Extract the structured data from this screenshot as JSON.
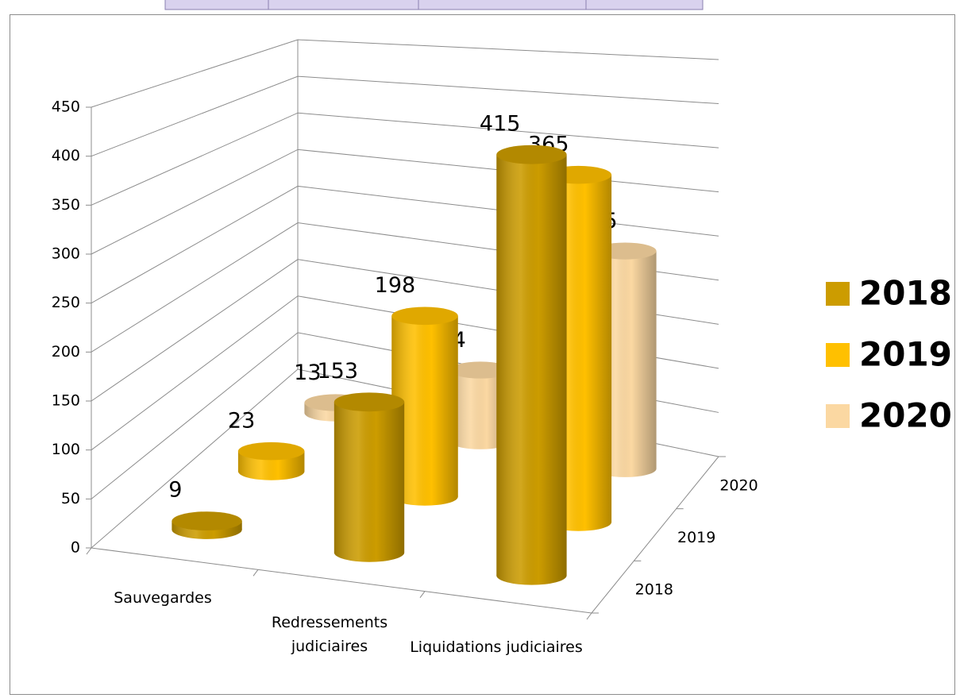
{
  "chart_data": {
    "type": "bar3d",
    "categories": [
      "Sauvegardes",
      "Redressements judiciaires",
      "Liquidations judiciaires"
    ],
    "series": [
      {
        "name": "2018",
        "color": "#cc9c00",
        "values": [
          9,
          153,
          415
        ]
      },
      {
        "name": "2019",
        "color": "#ffc000",
        "values": [
          23,
          198,
          365
        ]
      },
      {
        "name": "2020",
        "color": "#fbd8a2",
        "values": [
          13,
          84,
          245
        ]
      }
    ],
    "ylim": [
      0,
      450
    ],
    "yticks": [
      0,
      50,
      100,
      150,
      200,
      250,
      300,
      350,
      400,
      450
    ],
    "grid": true,
    "legend": "right"
  }
}
